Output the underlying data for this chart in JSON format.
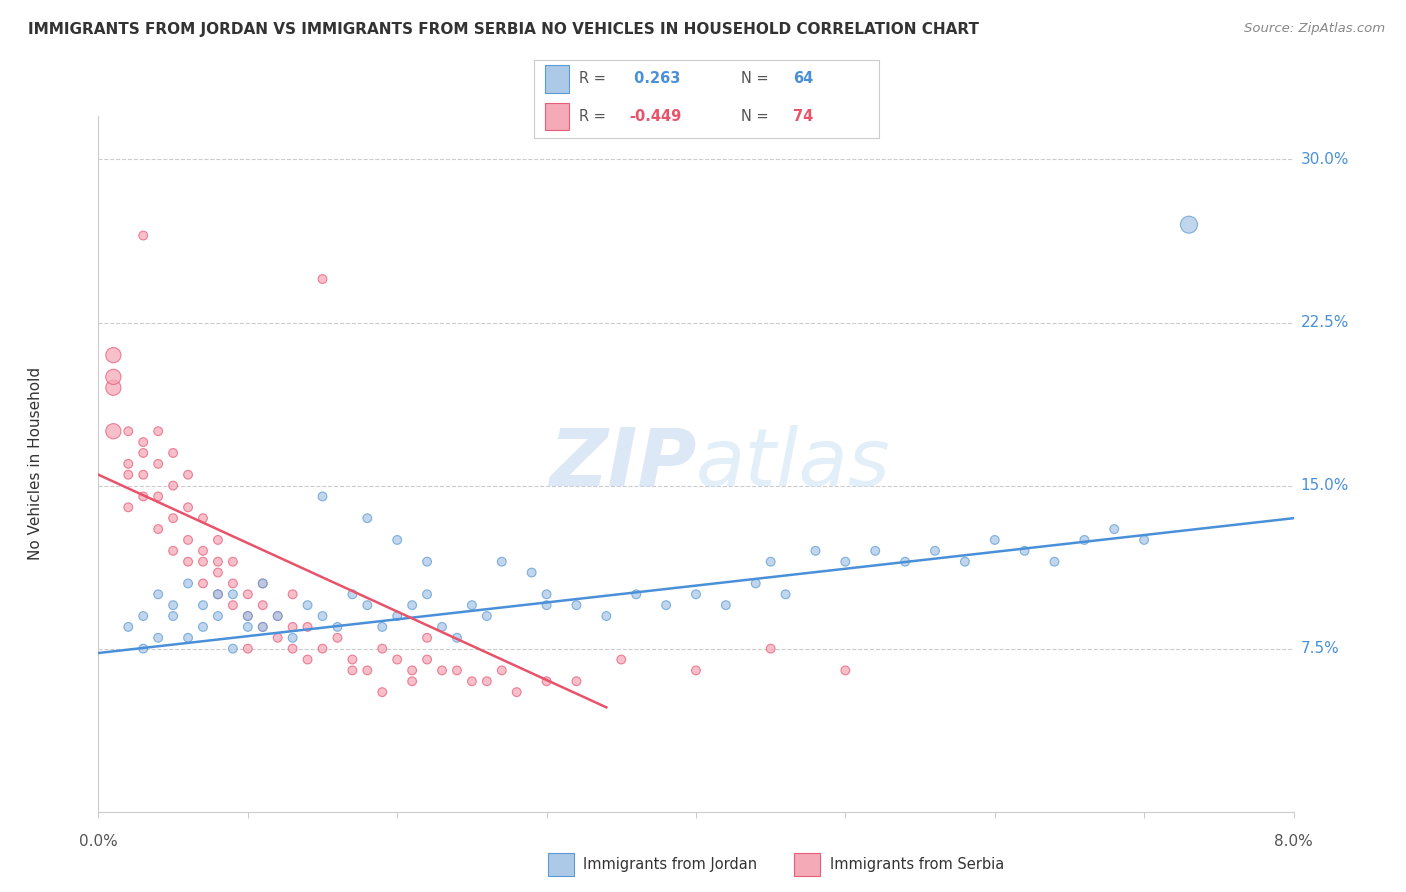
{
  "title": "IMMIGRANTS FROM JORDAN VS IMMIGRANTS FROM SERBIA NO VEHICLES IN HOUSEHOLD CORRELATION CHART",
  "source": "Source: ZipAtlas.com",
  "ylabel": "No Vehicles in Household",
  "xmin": 0.0,
  "xmax": 0.08,
  "ymin": 0.0,
  "ymax": 0.32,
  "legend_jordan_r": " 0.263",
  "legend_jordan_n": "64",
  "legend_serbia_r": "-0.449",
  "legend_serbia_n": "74",
  "color_jordan": "#adc9e8",
  "color_serbia": "#f5aab8",
  "color_jordan_line": "#4a90d9",
  "color_serbia_line": "#e8536a",
  "color_jordan_dark": "#5b9bd5",
  "color_serbia_dark": "#e85d7a",
  "watermark_color": "#d8e8f5",
  "jordan_line_x": [
    0.0,
    0.08
  ],
  "jordan_line_y": [
    0.073,
    0.135
  ],
  "serbia_line_x": [
    0.0,
    0.034
  ],
  "serbia_line_y": [
    0.155,
    0.048
  ],
  "jordan_points": [
    [
      0.002,
      0.085
    ],
    [
      0.003,
      0.09
    ],
    [
      0.003,
      0.075
    ],
    [
      0.004,
      0.1
    ],
    [
      0.004,
      0.08
    ],
    [
      0.005,
      0.095
    ],
    [
      0.005,
      0.09
    ],
    [
      0.006,
      0.105
    ],
    [
      0.006,
      0.08
    ],
    [
      0.007,
      0.095
    ],
    [
      0.007,
      0.085
    ],
    [
      0.008,
      0.1
    ],
    [
      0.008,
      0.09
    ],
    [
      0.009,
      0.1
    ],
    [
      0.009,
      0.075
    ],
    [
      0.01,
      0.085
    ],
    [
      0.01,
      0.09
    ],
    [
      0.011,
      0.105
    ],
    [
      0.011,
      0.085
    ],
    [
      0.012,
      0.09
    ],
    [
      0.013,
      0.08
    ],
    [
      0.014,
      0.095
    ],
    [
      0.015,
      0.09
    ],
    [
      0.016,
      0.085
    ],
    [
      0.017,
      0.1
    ],
    [
      0.018,
      0.095
    ],
    [
      0.019,
      0.085
    ],
    [
      0.02,
      0.09
    ],
    [
      0.021,
      0.095
    ],
    [
      0.022,
      0.1
    ],
    [
      0.023,
      0.085
    ],
    [
      0.024,
      0.08
    ],
    [
      0.025,
      0.095
    ],
    [
      0.026,
      0.09
    ],
    [
      0.015,
      0.145
    ],
    [
      0.018,
      0.135
    ],
    [
      0.02,
      0.125
    ],
    [
      0.022,
      0.115
    ],
    [
      0.03,
      0.1
    ],
    [
      0.032,
      0.095
    ],
    [
      0.034,
      0.09
    ],
    [
      0.036,
      0.1
    ],
    [
      0.04,
      0.1
    ],
    [
      0.042,
      0.095
    ],
    [
      0.044,
      0.105
    ],
    [
      0.046,
      0.1
    ],
    [
      0.05,
      0.115
    ],
    [
      0.052,
      0.12
    ],
    [
      0.054,
      0.115
    ],
    [
      0.056,
      0.12
    ],
    [
      0.058,
      0.115
    ],
    [
      0.06,
      0.125
    ],
    [
      0.062,
      0.12
    ],
    [
      0.064,
      0.115
    ],
    [
      0.066,
      0.125
    ],
    [
      0.068,
      0.13
    ],
    [
      0.07,
      0.125
    ],
    [
      0.073,
      0.27
    ],
    [
      0.045,
      0.115
    ],
    [
      0.048,
      0.12
    ],
    [
      0.03,
      0.095
    ],
    [
      0.038,
      0.095
    ],
    [
      0.027,
      0.115
    ],
    [
      0.029,
      0.11
    ]
  ],
  "serbia_points": [
    [
      0.001,
      0.175
    ],
    [
      0.001,
      0.195
    ],
    [
      0.001,
      0.21
    ],
    [
      0.001,
      0.2
    ],
    [
      0.002,
      0.155
    ],
    [
      0.002,
      0.175
    ],
    [
      0.002,
      0.16
    ],
    [
      0.002,
      0.14
    ],
    [
      0.003,
      0.155
    ],
    [
      0.003,
      0.17
    ],
    [
      0.003,
      0.145
    ],
    [
      0.003,
      0.165
    ],
    [
      0.004,
      0.145
    ],
    [
      0.004,
      0.16
    ],
    [
      0.004,
      0.175
    ],
    [
      0.004,
      0.13
    ],
    [
      0.005,
      0.135
    ],
    [
      0.005,
      0.15
    ],
    [
      0.005,
      0.165
    ],
    [
      0.005,
      0.12
    ],
    [
      0.006,
      0.125
    ],
    [
      0.006,
      0.14
    ],
    [
      0.006,
      0.155
    ],
    [
      0.006,
      0.115
    ],
    [
      0.007,
      0.12
    ],
    [
      0.007,
      0.135
    ],
    [
      0.007,
      0.105
    ],
    [
      0.007,
      0.115
    ],
    [
      0.008,
      0.11
    ],
    [
      0.008,
      0.125
    ],
    [
      0.008,
      0.1
    ],
    [
      0.009,
      0.105
    ],
    [
      0.009,
      0.095
    ],
    [
      0.009,
      0.115
    ],
    [
      0.01,
      0.1
    ],
    [
      0.01,
      0.09
    ],
    [
      0.011,
      0.095
    ],
    [
      0.011,
      0.085
    ],
    [
      0.012,
      0.09
    ],
    [
      0.012,
      0.08
    ],
    [
      0.013,
      0.085
    ],
    [
      0.013,
      0.075
    ],
    [
      0.014,
      0.085
    ],
    [
      0.014,
      0.07
    ],
    [
      0.015,
      0.075
    ],
    [
      0.016,
      0.08
    ],
    [
      0.017,
      0.07
    ],
    [
      0.018,
      0.065
    ],
    [
      0.019,
      0.075
    ],
    [
      0.02,
      0.07
    ],
    [
      0.021,
      0.065
    ],
    [
      0.022,
      0.07
    ],
    [
      0.023,
      0.065
    ],
    [
      0.025,
      0.06
    ],
    [
      0.027,
      0.065
    ],
    [
      0.03,
      0.06
    ],
    [
      0.015,
      0.245
    ],
    [
      0.003,
      0.265
    ],
    [
      0.035,
      0.07
    ],
    [
      0.04,
      0.065
    ],
    [
      0.045,
      0.075
    ],
    [
      0.05,
      0.065
    ],
    [
      0.028,
      0.055
    ],
    [
      0.032,
      0.06
    ],
    [
      0.017,
      0.065
    ],
    [
      0.019,
      0.055
    ],
    [
      0.021,
      0.06
    ],
    [
      0.024,
      0.065
    ],
    [
      0.011,
      0.105
    ],
    [
      0.013,
      0.1
    ],
    [
      0.008,
      0.115
    ],
    [
      0.01,
      0.075
    ],
    [
      0.022,
      0.08
    ],
    [
      0.026,
      0.06
    ]
  ],
  "jordan_base_size": 40,
  "serbia_base_size": 40,
  "jordan_big_idx": 57,
  "jordan_big_size": 150,
  "serbia_big_idxs": [
    0,
    1,
    2,
    3
  ],
  "serbia_big_size": 120
}
